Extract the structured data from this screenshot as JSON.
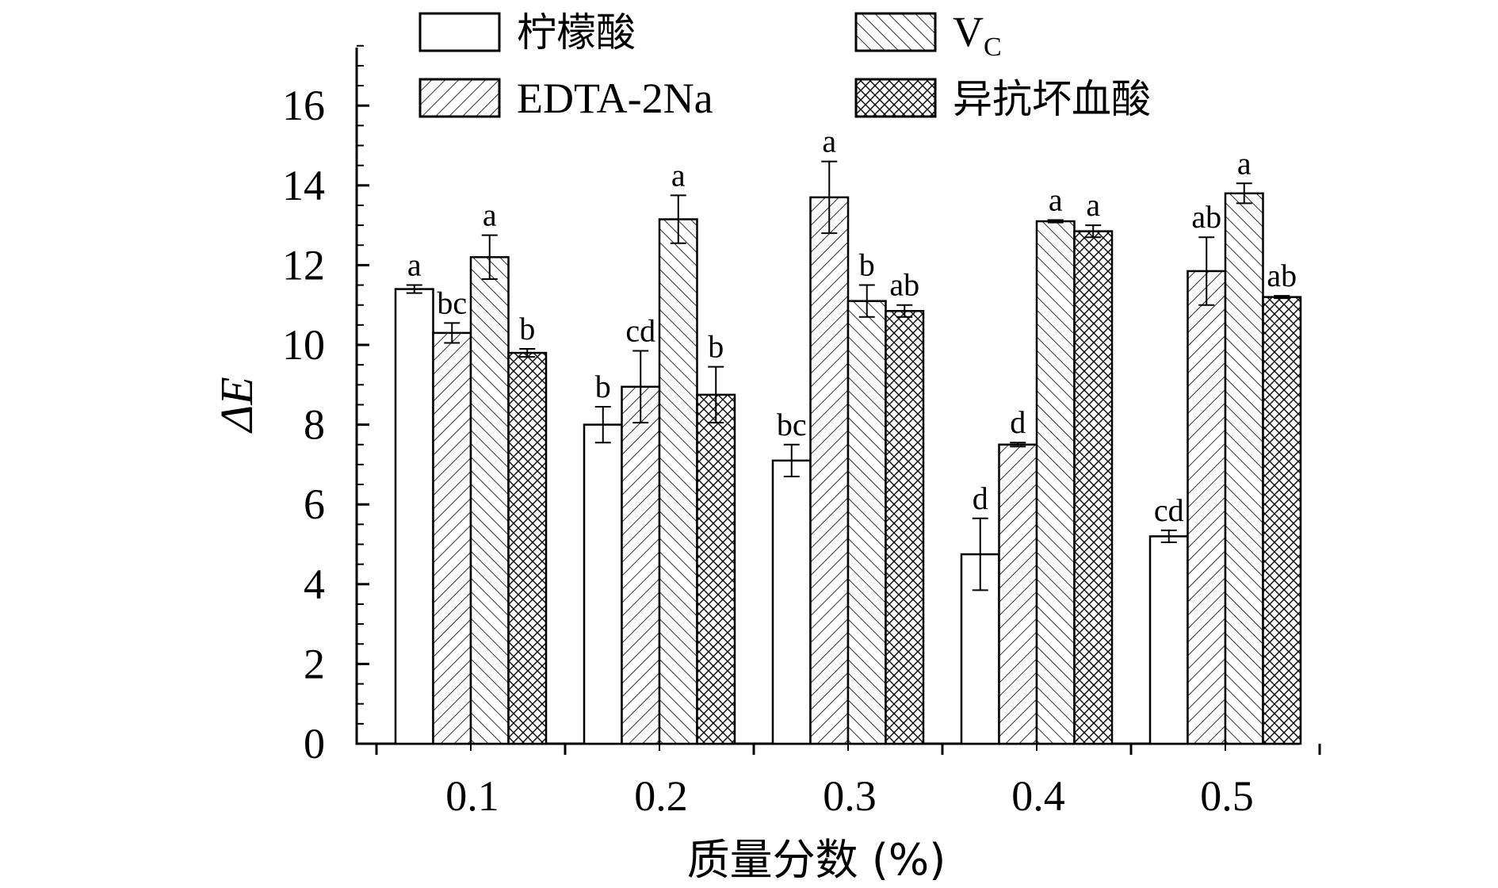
{
  "chart_data": {
    "type": "bar",
    "xlabel": "质量分数 (%)",
    "ylabel": "ΔE",
    "categories": [
      "0.1",
      "0.2",
      "0.3",
      "0.4",
      "0.5"
    ],
    "ylim": [
      0,
      17.5
    ],
    "yticks": [
      0,
      2,
      4,
      6,
      8,
      10,
      12,
      14,
      16
    ],
    "legend_position": "top",
    "series": [
      {
        "name": "柠檬酸",
        "pattern": "none",
        "values": [
          11.4,
          8.0,
          7.1,
          4.75,
          5.2
        ],
        "errors": [
          0.1,
          0.45,
          0.4,
          0.9,
          0.15
        ],
        "labels": [
          "a",
          "b",
          "bc",
          "d",
          "cd"
        ]
      },
      {
        "name": "EDTA-2Na",
        "pattern": "forward-diagonal",
        "values": [
          10.3,
          8.95,
          13.7,
          7.5,
          11.85
        ],
        "errors": [
          0.25,
          0.9,
          0.9,
          0.05,
          0.85
        ],
        "labels": [
          "bc",
          "cd",
          "a",
          "d",
          "ab"
        ]
      },
      {
        "name": "VC",
        "legend_main": "V",
        "legend_sub": "C",
        "pattern": "back-diagonal",
        "values": [
          12.2,
          13.15,
          11.1,
          13.1,
          13.8
        ],
        "errors": [
          0.55,
          0.6,
          0.4,
          0.03,
          0.25
        ],
        "labels": [
          "a",
          "a",
          "b",
          "a",
          "a"
        ]
      },
      {
        "name": "异抗坏血酸",
        "pattern": "crosshatch",
        "values": [
          9.8,
          8.75,
          10.85,
          12.85,
          11.2
        ],
        "errors": [
          0.1,
          0.7,
          0.15,
          0.15,
          0.03
        ],
        "labels": [
          "b",
          "b",
          "ab",
          "a",
          "ab"
        ]
      }
    ]
  },
  "colors": {
    "stroke": "#000000",
    "background": "#ffffff"
  }
}
